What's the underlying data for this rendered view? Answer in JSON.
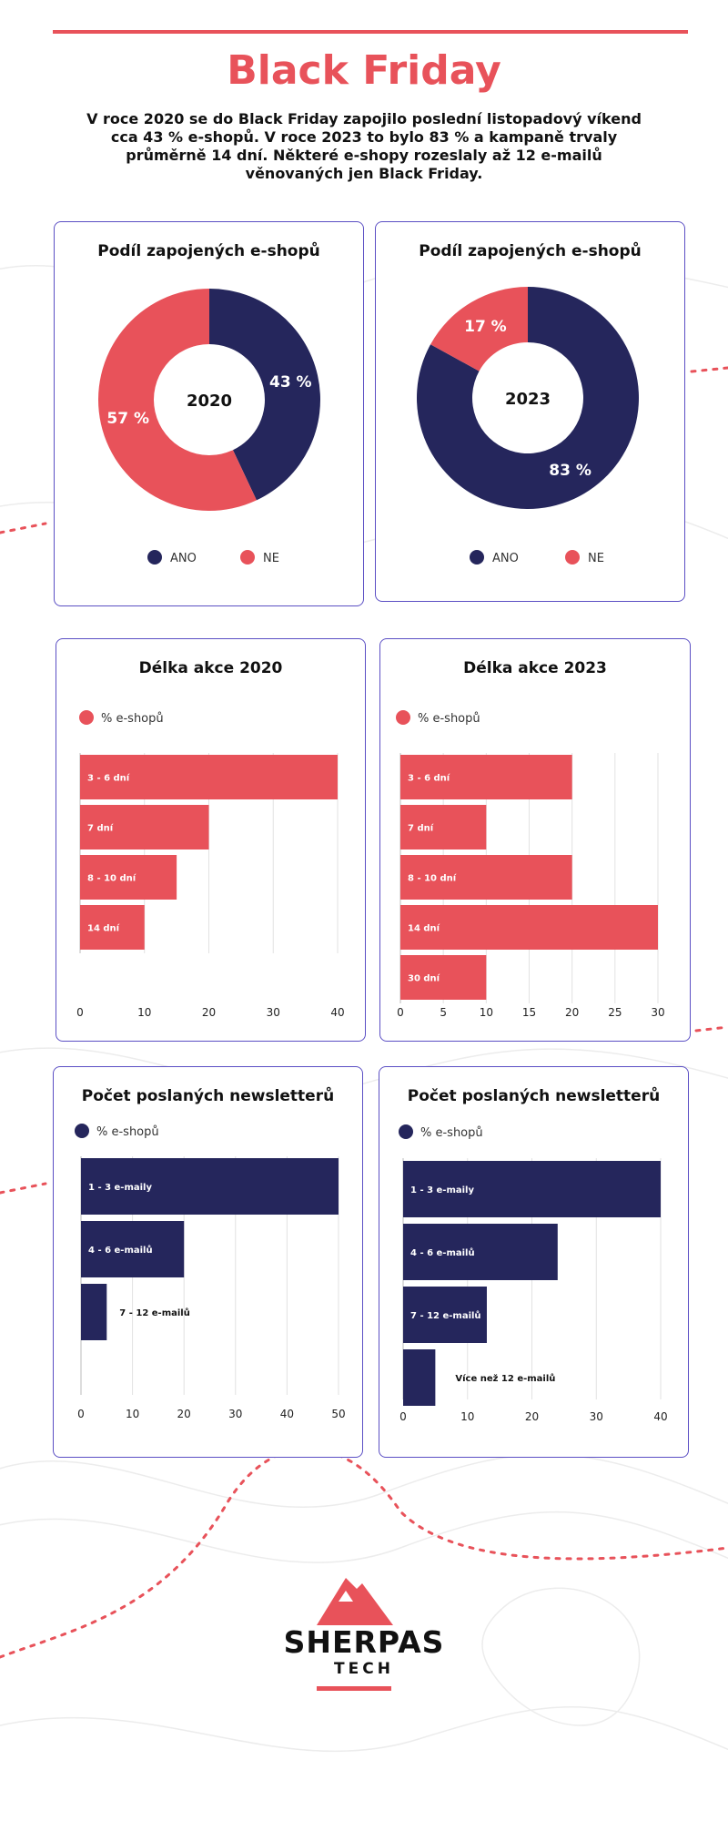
{
  "header": {
    "title": "Black Friday",
    "intro": "V roce 2020 se do Black Friday zapojilo poslední listopadový víkend cca 43 % e-shopů. V roce 2023 to bylo 83 % a kampaně trvaly průměrně 14 dní. Některé e-shopy rozeslaly až 12 e-mailů věnovaných jen Black Friday."
  },
  "colors": {
    "accent": "#e8525a",
    "navy": "#25265c",
    "border": "#5b4fc4"
  },
  "chart_data": [
    {
      "id": "donut2020",
      "type": "pie",
      "title": "Podíl zapojených e-shopů",
      "center_label": "2020",
      "slices": [
        {
          "label": "ANO",
          "value": 43,
          "display": "43 %",
          "color": "#25265c"
        },
        {
          "label": "NE",
          "value": 57,
          "display": "57 %",
          "color": "#e8525a"
        }
      ],
      "legend": [
        "ANO",
        "NE"
      ]
    },
    {
      "id": "donut2023",
      "type": "pie",
      "title": "Podíl zapojených e-shopů",
      "center_label": "2023",
      "slices": [
        {
          "label": "ANO",
          "value": 83,
          "display": "83 %",
          "color": "#25265c"
        },
        {
          "label": "NE",
          "value": 17,
          "display": "17 %",
          "color": "#e8525a"
        }
      ],
      "legend": [
        "ANO",
        "NE"
      ]
    },
    {
      "id": "bar2020",
      "type": "bar",
      "orientation": "horizontal",
      "title": "Délka akce 2020",
      "legend": "% e-shopů",
      "color": "#e8525a",
      "categories": [
        "3 - 6 dní",
        "7 dní",
        "8 - 10 dní",
        "14 dní"
      ],
      "values": [
        40,
        20,
        15,
        10
      ],
      "xlim": [
        0,
        40
      ],
      "ticks": [
        0,
        10,
        20,
        30,
        40
      ],
      "grid": true
    },
    {
      "id": "bar2023",
      "type": "bar",
      "orientation": "horizontal",
      "title": "Délka akce 2023",
      "legend": "% e-shopů",
      "color": "#e8525a",
      "categories": [
        "3 - 6 dní",
        "7 dní",
        "8 - 10 dní",
        "14 dní",
        "30 dní"
      ],
      "values": [
        20,
        10,
        20,
        30,
        10
      ],
      "xlim": [
        0,
        30
      ],
      "ticks": [
        0,
        5,
        10,
        15,
        20,
        25,
        30
      ],
      "grid": true
    },
    {
      "id": "news2020",
      "type": "bar",
      "orientation": "horizontal",
      "title": "Počet poslaných newsletterů",
      "legend": "% e-shopů",
      "color": "#25265c",
      "categories": [
        "1 - 3 e-maily",
        "4 - 6 e-mailů",
        "7 - 12 e-mailů"
      ],
      "values": [
        50,
        20,
        5
      ],
      "xlim": [
        0,
        50
      ],
      "ticks": [
        0,
        10,
        20,
        30,
        40,
        50
      ],
      "grid": true
    },
    {
      "id": "news2023",
      "type": "bar",
      "orientation": "horizontal",
      "title": "Počet poslaných newsletterů",
      "legend": "% e-shopů",
      "color": "#25265c",
      "categories": [
        "1 - 3 e-maily",
        "4 - 6 e-mailů",
        "7 - 12 e-mailů",
        "Více než 12 e-mailů"
      ],
      "values": [
        40,
        24,
        13,
        5
      ],
      "xlim": [
        0,
        40
      ],
      "ticks": [
        0,
        10,
        20,
        30,
        40
      ],
      "grid": true
    }
  ],
  "logo": {
    "name": "SHERPAS",
    "sub": "TECH"
  }
}
